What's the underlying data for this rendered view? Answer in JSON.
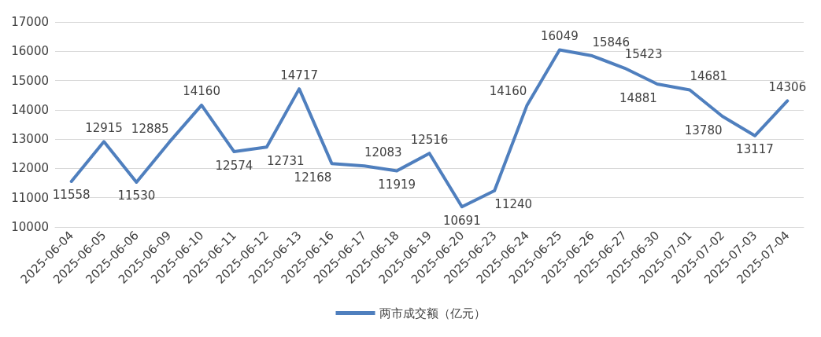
{
  "chart_data": {
    "type": "line",
    "categories": [
      "2025-06-04",
      "2025-06-05",
      "2025-06-06",
      "2025-06-09",
      "2025-06-10",
      "2025-06-11",
      "2025-06-12",
      "2025-06-13",
      "2025-06-16",
      "2025-06-17",
      "2025-06-18",
      "2025-06-19",
      "2025-06-20",
      "2025-06-23",
      "2025-06-24",
      "2025-06-25",
      "2025-06-26",
      "2025-06-27",
      "2025-06-30",
      "2025-07-01",
      "2025-07-02",
      "2025-07-03",
      "2025-07-04"
    ],
    "series": [
      {
        "name": "两市成交额（亿元）",
        "color": "#4f7fbe",
        "values": [
          11558,
          12915,
          11530,
          12885,
          14160,
          12574,
          12731,
          14717,
          12168,
          12083,
          11919,
          12516,
          10691,
          11240,
          14160,
          16049,
          15846,
          15423,
          14881,
          14681,
          13780,
          13117,
          14306
        ]
      }
    ],
    "ylim": [
      10000,
      17000
    ],
    "yticks": [
      10000,
      11000,
      12000,
      13000,
      14000,
      15000,
      16000,
      17000
    ],
    "grid": "y",
    "legend": "bottom",
    "marker": "none",
    "line_style": "solid",
    "data_labels": true
  }
}
